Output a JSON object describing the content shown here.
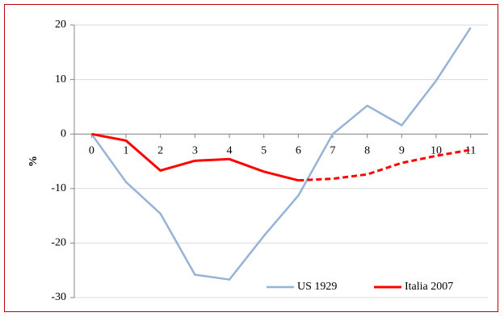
{
  "chart_data": {
    "type": "line",
    "y_label": "%",
    "x": [
      0,
      1,
      2,
      3,
      4,
      5,
      6,
      7,
      8,
      9,
      10,
      11
    ],
    "xlim": [
      -0.5,
      11.5
    ],
    "xticks": [
      0,
      1,
      2,
      3,
      4,
      5,
      6,
      7,
      8,
      9,
      10,
      11
    ],
    "ylim": [
      -30,
      20
    ],
    "yticks": [
      20,
      10,
      0,
      -10,
      -20,
      -30
    ],
    "grid": true,
    "legend": "bottom",
    "series": [
      {
        "name": "US 1929",
        "color": "#95b3d7",
        "values": [
          0,
          -8.8,
          -14.6,
          -25.8,
          -26.7,
          -18.7,
          -11.3,
          0,
          5.2,
          1.6,
          9.8,
          19.5
        ]
      },
      {
        "name": "Italia 2007",
        "color": "#ff0000",
        "dashed_from_x": 6,
        "values": [
          0,
          -1.2,
          -6.7,
          -4.9,
          -4.6,
          -6.9,
          -8.5,
          -8.2,
          -7.4,
          -5.3,
          -4.0,
          -2.9
        ]
      }
    ]
  }
}
